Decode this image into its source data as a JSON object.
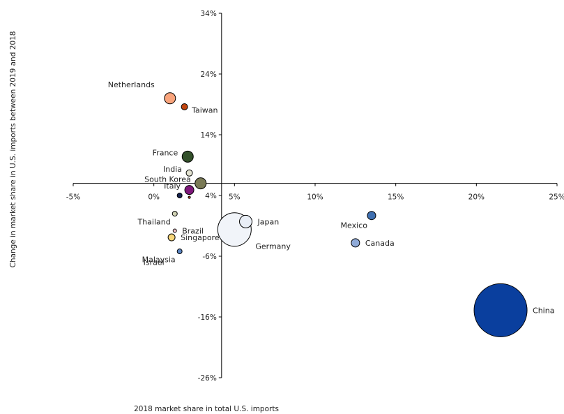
{
  "chart_data": {
    "type": "bubble",
    "xlabel": "2018 market share in total U.S. imports",
    "ylabel": "Change in market share in U.S. imports between 2019  and 2018",
    "xlim": [
      -5,
      25
    ],
    "ylim": [
      -26,
      34
    ],
    "x_ticks": [
      {
        "v": -5,
        "label": "-5%"
      },
      {
        "v": 0,
        "label": "0%"
      },
      {
        "v": 5,
        "label": "5%"
      },
      {
        "v": 10,
        "label": "10%"
      },
      {
        "v": 15,
        "label": "15%"
      },
      {
        "v": 20,
        "label": "20%"
      },
      {
        "v": 25,
        "label": "25%"
      }
    ],
    "y_ticks": [
      {
        "v": 34,
        "label": "34%"
      },
      {
        "v": 24,
        "label": "24%"
      },
      {
        "v": 14,
        "label": "14%"
      },
      {
        "v": 4,
        "label": "4%"
      },
      {
        "v": -6,
        "label": "-6%"
      },
      {
        "v": -16,
        "label": "-16%"
      },
      {
        "v": -26,
        "label": "-26%"
      }
    ],
    "points": [
      {
        "name": "China",
        "x": 21.5,
        "y": -14.9,
        "size": 38,
        "color": "#0a3f9e",
        "label_pos": "right"
      },
      {
        "name": "Mexico",
        "x": 13.5,
        "y": 0.7,
        "size": 6,
        "color": "#3f6fb0",
        "label_pos": "below-left"
      },
      {
        "name": "Canada",
        "x": 12.5,
        "y": -3.8,
        "size": 6,
        "color": "#8faad8",
        "label_pos": "right"
      },
      {
        "name": "Japan",
        "x": 5.7,
        "y": -0.3,
        "size": 9,
        "color": "#e9eef6",
        "label_pos": "right"
      },
      {
        "name": "Germany",
        "x": 5.0,
        "y": -1.6,
        "size": 24,
        "color": "#f1f4f9",
        "label_pos": "below-right"
      },
      {
        "name": "Netherlands",
        "x": 1.0,
        "y": 20.0,
        "size": 8,
        "color": "#f9a47c",
        "label_pos": "above-left"
      },
      {
        "name": "Taiwan",
        "x": 1.9,
        "y": 18.6,
        "size": 4.5,
        "color": "#c0450f",
        "label_pos": "below-right"
      },
      {
        "name": "France",
        "x": 2.1,
        "y": 10.4,
        "size": 8,
        "color": "#33502a",
        "label_pos": "left"
      },
      {
        "name": "India",
        "x": 2.2,
        "y": 7.7,
        "size": 4.5,
        "color": "#e2e2d0",
        "label_pos": "left"
      },
      {
        "name": "South Korea",
        "x": 2.9,
        "y": 6.0,
        "size": 8,
        "color": "#7a7a56",
        "label_pos": "left"
      },
      {
        "name": "Italy",
        "x": 2.2,
        "y": 4.9,
        "size": 6.5,
        "color": "#7e177a",
        "label_pos": "left"
      },
      {
        "name": "",
        "x": 2.2,
        "y": 3.7,
        "size": 1.6,
        "color": "#c24a1e",
        "label_pos": "none"
      },
      {
        "name": "",
        "x": 1.6,
        "y": 4.0,
        "size": 3.5,
        "color": "#16234f",
        "label_pos": "none"
      },
      {
        "name": "Thailand",
        "x": 1.3,
        "y": 1.0,
        "size": 3.5,
        "color": "#d1d3b5",
        "label_pos": "below-left"
      },
      {
        "name": "Brazil",
        "x": 1.3,
        "y": -1.8,
        "size": 2.5,
        "color": "#f2c2c8",
        "label_pos": "right"
      },
      {
        "name": "Singapore",
        "x": 1.1,
        "y": -2.9,
        "size": 5,
        "color": "#f8d67a",
        "label_pos": "right"
      },
      {
        "name": "Malaysia",
        "x": 1.6,
        "y": -5.2,
        "size": 3.5,
        "color": "#5a85c3",
        "label_pos": "below-left"
      },
      {
        "name": "Israel",
        "x": 0.0,
        "y": -7.0,
        "size": 0,
        "color": "#ffffff",
        "label_pos": "text-only"
      }
    ]
  }
}
